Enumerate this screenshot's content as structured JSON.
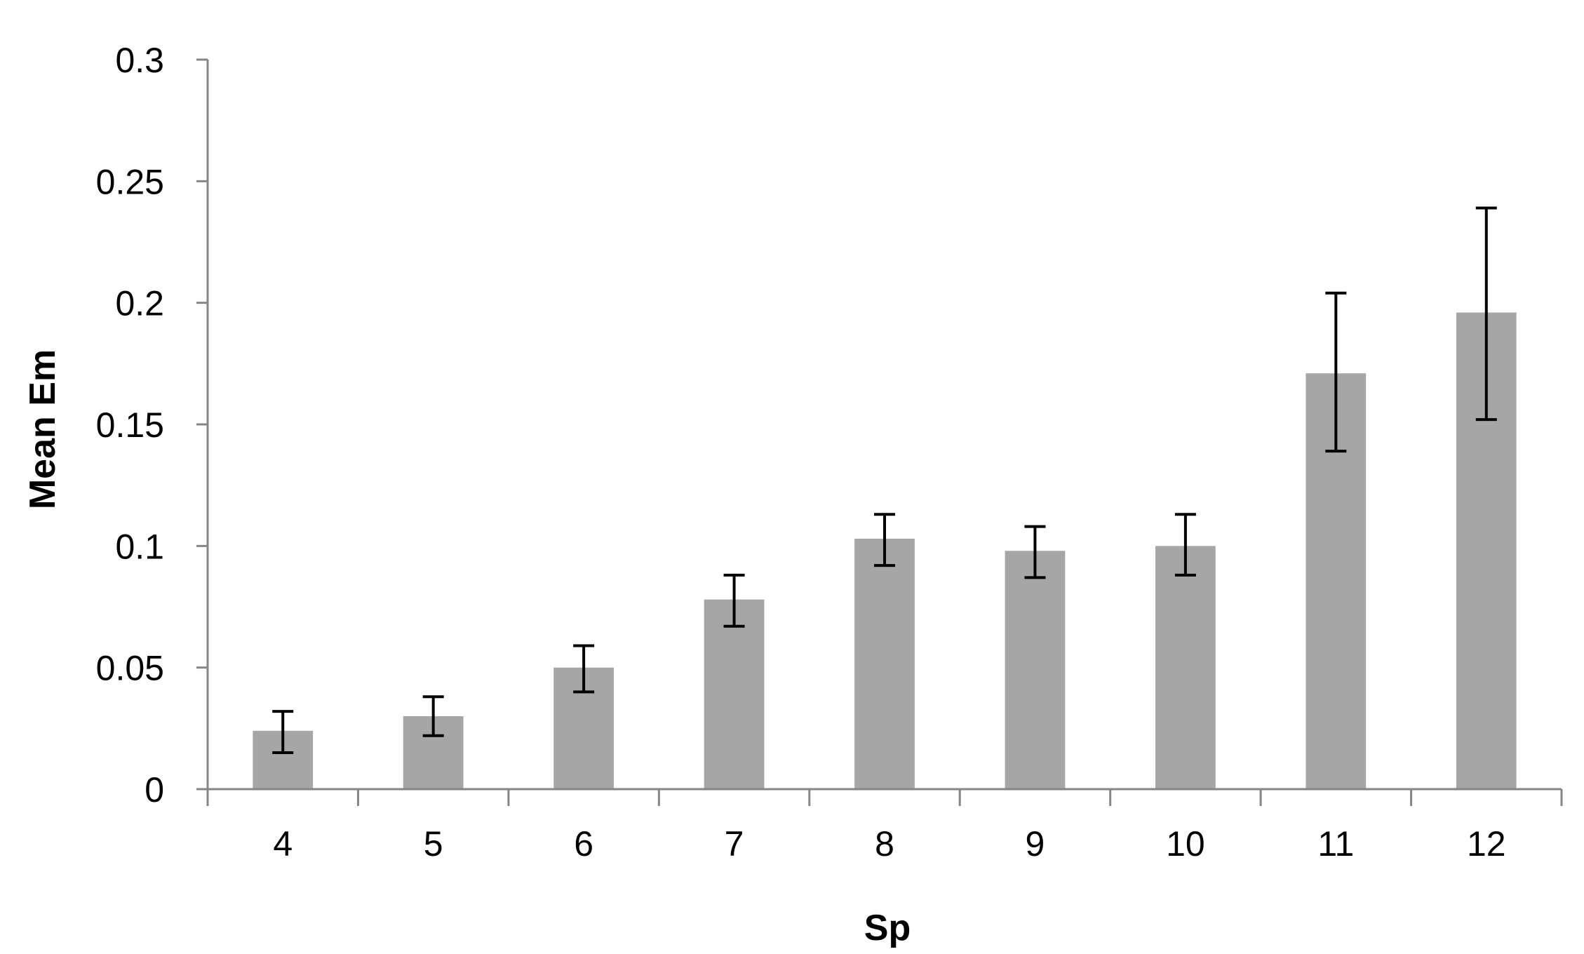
{
  "chart_data": {
    "type": "bar",
    "title": "",
    "xlabel": "Sp",
    "ylabel": "Mean Em",
    "categories": [
      "4",
      "5",
      "6",
      "7",
      "8",
      "9",
      "10",
      "11",
      "12"
    ],
    "values": [
      0.024,
      0.03,
      0.05,
      0.078,
      0.103,
      0.098,
      0.1,
      0.171,
      0.196
    ],
    "error_bars": {
      "lower": [
        0.015,
        0.022,
        0.04,
        0.067,
        0.092,
        0.087,
        0.088,
        0.139,
        0.152
      ],
      "upper": [
        0.032,
        0.038,
        0.059,
        0.088,
        0.113,
        0.108,
        0.113,
        0.204,
        0.239
      ]
    },
    "ylim": [
      0,
      0.3
    ],
    "yticks": [
      "0",
      "0.05",
      "0.1",
      "0.15",
      "0.2",
      "0.25",
      "0.3"
    ],
    "grid": false,
    "legend": "none",
    "colors": {
      "bar": "#a6a6a6",
      "axis": "#868686",
      "error_bar": "#000000"
    }
  }
}
